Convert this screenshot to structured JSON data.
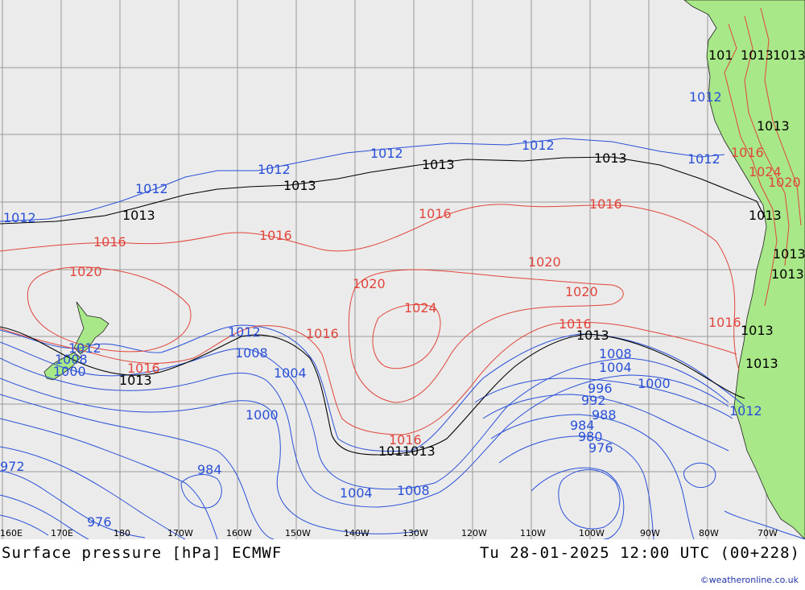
{
  "footer": {
    "title": "Surface pressure [hPa] ECMWF",
    "datetime": "Tu 28-01-2025 12:00 UTC (00+228)",
    "credit": "©weatheronline.co.uk"
  },
  "colors": {
    "ocean": "#ebebeb",
    "land": "#a8e888",
    "grid": "#9a9a9a",
    "isobar_low": "#2a50d8",
    "isobar_high": "#e0463c",
    "isobar_1013": "#000000"
  },
  "axis": {
    "lon_ticks": [
      "160E",
      "170E",
      "180",
      "170W",
      "160W",
      "150W",
      "140W",
      "130W",
      "120W",
      "110W",
      "100W",
      "90W",
      "80W",
      "70W"
    ]
  },
  "isobar_labels": {
    "blue": [
      "1012",
      "1012",
      "1012",
      "1012",
      "1012",
      "1012",
      "1012",
      "1012",
      "1012",
      "1012",
      "1008",
      "1008",
      "1008",
      "1008",
      "1004",
      "1004",
      "1004",
      "1000",
      "1000",
      "1000",
      "996",
      "992",
      "988",
      "984",
      "980",
      "976",
      "984",
      "976",
      "972",
      "1000"
    ],
    "red": [
      "1016",
      "1016",
      "1016",
      "1016",
      "1016",
      "1016",
      "1016",
      "1016",
      "1016",
      "1020",
      "1020",
      "1020",
      "1020",
      "1024",
      "1016",
      "1024",
      "1020"
    ],
    "black": [
      "1013",
      "1013",
      "1013",
      "1013",
      "1013",
      "1013",
      "1013",
      "1013",
      "1013",
      "1013",
      "1013",
      "1013",
      "101",
      "1013",
      "101",
      "1013",
      "1013"
    ]
  }
}
